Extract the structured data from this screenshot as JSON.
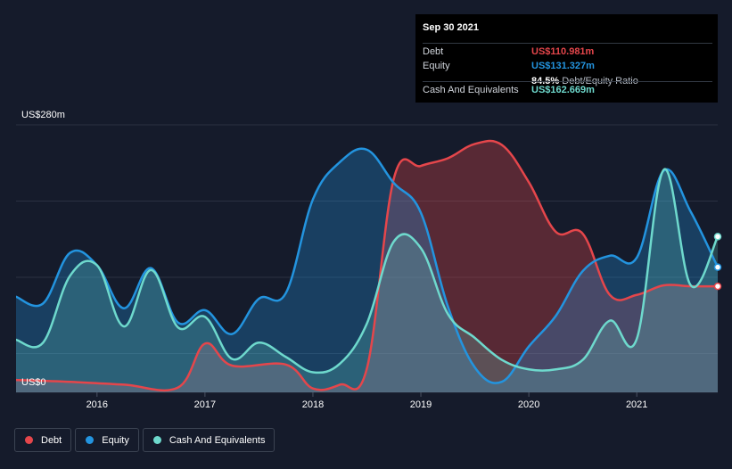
{
  "chart_data": {
    "type": "area",
    "title": "",
    "y_unit_label_top": "US$280m",
    "y_unit_label_bottom": "US$0",
    "ylim": [
      0,
      280
    ],
    "x_range": [
      2015.25,
      2021.75
    ],
    "x_ticks": [
      {
        "label": "2016",
        "value": 2016.0
      },
      {
        "label": "2017",
        "value": 2017.0
      },
      {
        "label": "2018",
        "value": 2018.0
      },
      {
        "label": "2019",
        "value": 2019.0
      },
      {
        "label": "2020",
        "value": 2020.0
      },
      {
        "label": "2021",
        "value": 2021.0
      }
    ],
    "series": [
      {
        "name": "Debt",
        "color": "#e5464b",
        "x": [
          2015.25,
          2015.75,
          2016.25,
          2016.75,
          2017.0,
          2017.25,
          2017.75,
          2018.0,
          2018.25,
          2018.5,
          2018.75,
          2019.0,
          2019.25,
          2019.5,
          2019.75,
          2020.0,
          2020.25,
          2020.5,
          2020.75,
          2021.0,
          2021.25,
          2021.5,
          2021.75
        ],
        "values": [
          13,
          11,
          8,
          5,
          51,
          28,
          29,
          4,
          8,
          25,
          224,
          237,
          245,
          260,
          259,
          220,
          168,
          166,
          102,
          102,
          112,
          111,
          111
        ]
      },
      {
        "name": "Equity",
        "color": "#2394df",
        "x": [
          2015.25,
          2015.5,
          2015.75,
          2016.0,
          2016.25,
          2016.5,
          2016.75,
          2017.0,
          2017.25,
          2017.5,
          2017.75,
          2018.0,
          2018.25,
          2018.5,
          2018.75,
          2019.0,
          2019.25,
          2019.5,
          2019.75,
          2020.0,
          2020.25,
          2020.5,
          2020.75,
          2021.0,
          2021.25,
          2021.5,
          2021.75
        ],
        "values": [
          100,
          93,
          146,
          133,
          88,
          130,
          73,
          86,
          61,
          98,
          104,
          202,
          241,
          254,
          219,
          188,
          90,
          26,
          11,
          48,
          80,
          127,
          143,
          141,
          232,
          189,
          131
        ]
      },
      {
        "name": "Cash And Equivalents",
        "color": "#6ed9cd",
        "x": [
          2015.25,
          2015.5,
          2015.75,
          2016.0,
          2016.25,
          2016.5,
          2016.75,
          2017.0,
          2017.25,
          2017.5,
          2017.75,
          2018.0,
          2018.25,
          2018.5,
          2018.75,
          2019.0,
          2019.25,
          2019.5,
          2019.75,
          2020.0,
          2020.25,
          2020.5,
          2020.75,
          2021.0,
          2021.25,
          2021.5,
          2021.75
        ],
        "values": [
          55,
          52,
          122,
          133,
          69,
          128,
          68,
          79,
          35,
          52,
          37,
          21,
          30,
          72,
          158,
          151,
          82,
          57,
          34,
          24,
          24,
          34,
          75,
          56,
          233,
          112,
          163
        ]
      }
    ],
    "legend": [
      "Debt",
      "Equity",
      "Cash And Equivalents"
    ],
    "grid": true
  },
  "tooltip": {
    "date": "Sep 30 2021",
    "rows": [
      {
        "label": "Debt",
        "value": "US$110.981m",
        "color": "#e5464b"
      },
      {
        "label": "Equity",
        "value": "US$131.327m",
        "color": "#2394df"
      },
      {
        "label": "",
        "value": "84.5%",
        "suffix": "Debt/Equity Ratio",
        "color": "#ffffff"
      },
      {
        "label": "Cash And Equivalents",
        "value": "US$162.669m",
        "color": "#6ed9cd"
      }
    ]
  }
}
